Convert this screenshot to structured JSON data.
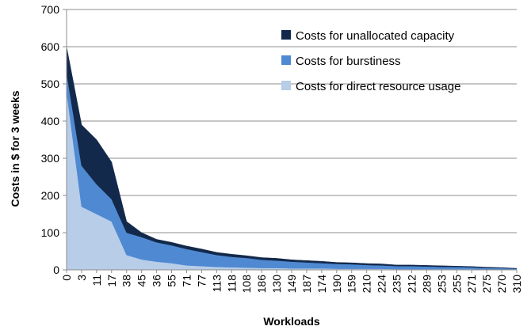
{
  "chart_data": {
    "type": "area",
    "stacked": true,
    "title": "",
    "xlabel": "Workloads",
    "ylabel": "Costs in $ for 3 weeks",
    "ylim": [
      0,
      700
    ],
    "yticks": [
      0,
      100,
      200,
      300,
      400,
      500,
      600,
      700
    ],
    "grid": "horizontal",
    "legend": "top-right",
    "x_tick_labels": [
      "0",
      "3",
      "11",
      "17",
      "38",
      "45",
      "36",
      "55",
      "71",
      "77",
      "113",
      "118",
      "108",
      "186",
      "130",
      "149",
      "187",
      "174",
      "190",
      "159",
      "210",
      "224",
      "235",
      "212",
      "289",
      "253",
      "255",
      "271",
      "275",
      "270",
      "310"
    ],
    "x": [
      0,
      1,
      2,
      3,
      4,
      5,
      6,
      7,
      8,
      9,
      10,
      11,
      12,
      13,
      14,
      15,
      16,
      17,
      18,
      19,
      20,
      21,
      22,
      23,
      24,
      25,
      26,
      27,
      28,
      29,
      30
    ],
    "series": [
      {
        "name": "Costs for direct resource usage",
        "color": "#b7cde8",
        "values": [
          480,
          170,
          150,
          130,
          40,
          28,
          22,
          18,
          12,
          10,
          8,
          7,
          6,
          5,
          5,
          4,
          4,
          4,
          3,
          3,
          3,
          3,
          2,
          2,
          2,
          2,
          2,
          2,
          1,
          1,
          1
        ]
      },
      {
        "name": "Costs for burstiness",
        "color": "#4f89d2",
        "values": [
          50,
          110,
          80,
          60,
          60,
          60,
          52,
          48,
          44,
          38,
          32,
          28,
          26,
          22,
          20,
          18,
          16,
          14,
          13,
          12,
          10,
          9,
          8,
          8,
          7,
          6,
          6,
          5,
          4,
          4,
          2
        ]
      },
      {
        "name": "Costs for unallocated capacity",
        "color": "#13294b",
        "values": [
          70,
          110,
          120,
          100,
          30,
          12,
          8,
          8,
          8,
          8,
          7,
          7,
          6,
          6,
          6,
          5,
          5,
          5,
          4,
          4,
          4,
          4,
          3,
          3,
          3,
          3,
          2,
          2,
          2,
          1,
          1
        ]
      }
    ],
    "legend_order": [
      "Costs for unallocated capacity",
      "Costs for burstiness",
      "Costs for direct resource usage"
    ]
  }
}
